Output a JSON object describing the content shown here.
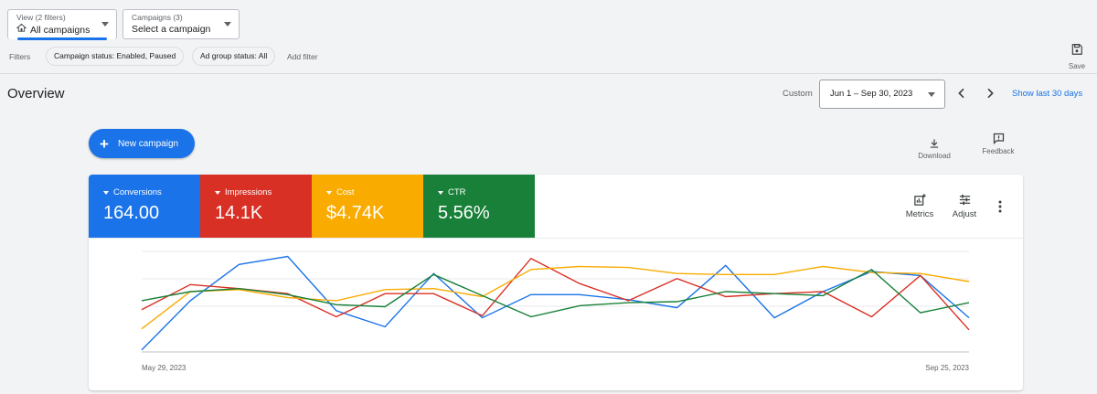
{
  "view_selector": {
    "label": "View (2 filters)",
    "value": "All campaigns"
  },
  "campaign_selector": {
    "label": "Campaigns (3)",
    "value": "Select a campaign"
  },
  "filters": {
    "label": "Filters",
    "chips": [
      "Campaign status: Enabled, Paused",
      "Ad group status: All"
    ],
    "add_label": "Add filter"
  },
  "save_label": "Save",
  "overview": {
    "title": "Overview",
    "custom_label": "Custom",
    "date_range": "Jun 1 – Sep 30, 2023",
    "show_last_label": "Show last 30 days"
  },
  "new_campaign_label": "New campaign",
  "tools": {
    "download": "Download",
    "feedback": "Feedback",
    "metrics": "Metrics",
    "adjust": "Adjust"
  },
  "metric_tiles": [
    {
      "name": "Conversions",
      "value": "164.00",
      "color": "#1a73e8"
    },
    {
      "name": "Impressions",
      "value": "14.1K",
      "color": "#d93025"
    },
    {
      "name": "Cost",
      "value": "$4.74K",
      "color": "#f9ab00"
    },
    {
      "name": "CTR",
      "value": "5.56%",
      "color": "#188038"
    }
  ],
  "chart_data": {
    "type": "line",
    "x_start_label": "May 29, 2023",
    "x_end_label": "Sep 25, 2023",
    "y_scale": "relative (0-100, per series normalized)",
    "grid": true,
    "series": [
      {
        "name": "Conversions",
        "color": "#1a73e8",
        "values": [
          2,
          51,
          87,
          95,
          41,
          25,
          78,
          34,
          57,
          57,
          52,
          44,
          86,
          34,
          60,
          80,
          76,
          34
        ]
      },
      {
        "name": "Impressions",
        "color": "#d93025",
        "values": [
          42,
          67,
          63,
          58,
          35,
          58,
          58,
          36,
          93,
          68,
          51,
          73,
          55,
          58,
          60,
          35,
          76,
          22
        ]
      },
      {
        "name": "Cost",
        "color": "#f9ab00",
        "values": [
          23,
          60,
          62,
          54,
          51,
          62,
          63,
          55,
          82,
          85,
          84,
          78,
          77,
          77,
          85,
          79,
          78,
          70
        ]
      },
      {
        "name": "CTR",
        "color": "#188038",
        "values": [
          51,
          60,
          63,
          57,
          47,
          45,
          77,
          56,
          35,
          46,
          49,
          50,
          60,
          58,
          56,
          82,
          39,
          49
        ]
      }
    ]
  }
}
